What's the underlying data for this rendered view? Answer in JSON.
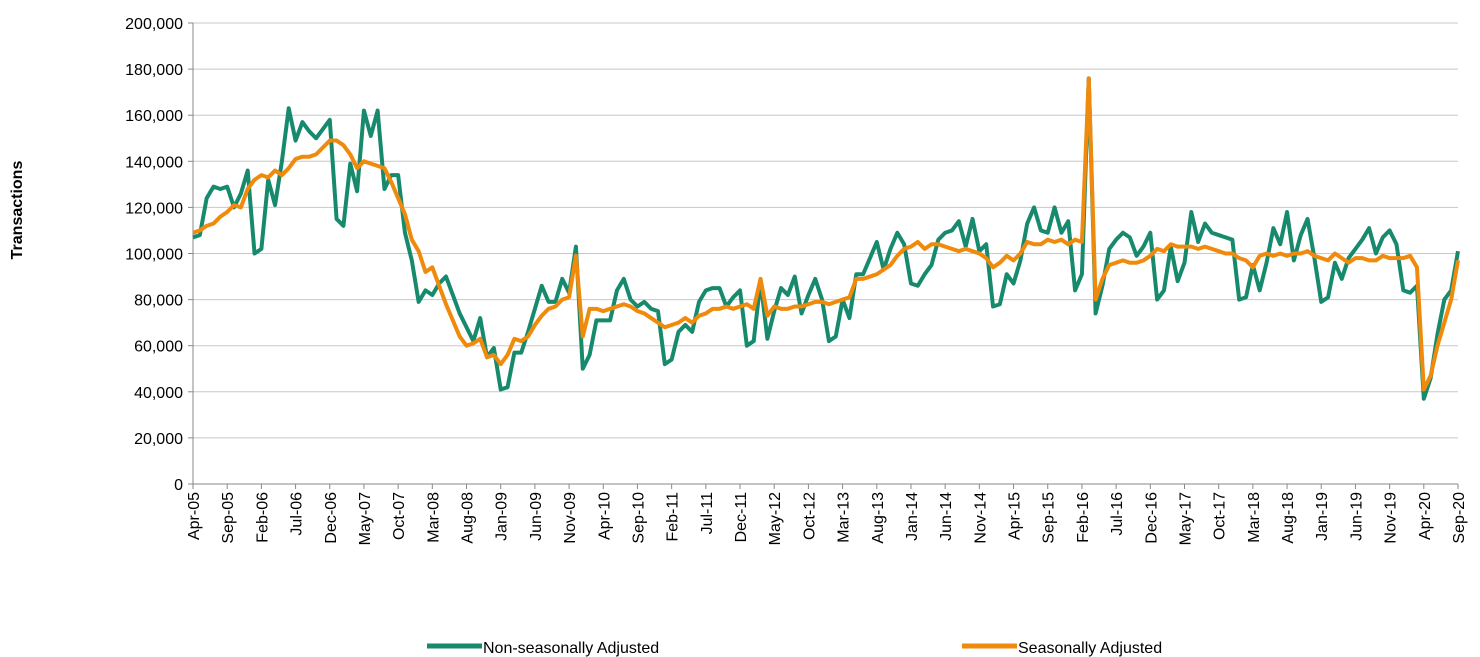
{
  "chart_data": {
    "type": "line",
    "ylabel": "Transactions",
    "categories": [
      "Apr-05",
      null,
      null,
      null,
      null,
      "Sep-05",
      null,
      null,
      null,
      null,
      "Feb-06",
      null,
      null,
      null,
      null,
      "Jul-06",
      null,
      null,
      null,
      null,
      "Dec-06",
      null,
      null,
      null,
      null,
      "May-07",
      null,
      null,
      null,
      null,
      "Oct-07",
      null,
      null,
      null,
      null,
      "Mar-08",
      null,
      null,
      null,
      null,
      "Aug-08",
      null,
      null,
      null,
      null,
      "Jan-09",
      null,
      null,
      null,
      null,
      "Jun-09",
      null,
      null,
      null,
      null,
      "Nov-09",
      null,
      null,
      null,
      null,
      "Apr-10",
      null,
      null,
      null,
      null,
      "Sep-10",
      null,
      null,
      null,
      null,
      "Feb-11",
      null,
      null,
      null,
      null,
      "Jul-11",
      null,
      null,
      null,
      null,
      "Dec-11",
      null,
      null,
      null,
      null,
      "May-12",
      null,
      null,
      null,
      null,
      "Oct-12",
      null,
      null,
      null,
      null,
      "Mar-13",
      null,
      null,
      null,
      null,
      "Aug-13",
      null,
      null,
      null,
      null,
      "Jan-14",
      null,
      null,
      null,
      null,
      "Jun-14",
      null,
      null,
      null,
      null,
      "Nov-14",
      null,
      null,
      null,
      null,
      "Apr-15",
      null,
      null,
      null,
      null,
      "Sep-15",
      null,
      null,
      null,
      null,
      "Feb-16",
      null,
      null,
      null,
      null,
      "Jul-16",
      null,
      null,
      null,
      null,
      "Dec-16",
      null,
      null,
      null,
      null,
      "May-17",
      null,
      null,
      null,
      null,
      "Oct-17",
      null,
      null,
      null,
      null,
      "Mar-18",
      null,
      null,
      null,
      null,
      "Aug-18",
      null,
      null,
      null,
      null,
      "Jan-19",
      null,
      null,
      null,
      null,
      "Jun-19",
      null,
      null,
      null,
      null,
      "Nov-19",
      null,
      null,
      null,
      null,
      "Apr-20",
      null,
      null,
      null,
      null,
      "Sep-20"
    ],
    "series": [
      {
        "name": "Non-seasonally Adjusted",
        "color": "#178a6e",
        "values": [
          107000,
          108000,
          124000,
          129000,
          128000,
          129000,
          120000,
          126000,
          136000,
          100000,
          102000,
          132000,
          121000,
          140000,
          163000,
          149000,
          157000,
          153000,
          150000,
          154000,
          158000,
          115000,
          112000,
          139000,
          127000,
          162000,
          151000,
          162000,
          128000,
          134000,
          134000,
          109000,
          97000,
          79000,
          84000,
          82000,
          87000,
          90000,
          82000,
          74000,
          68000,
          62000,
          72000,
          55000,
          59000,
          41000,
          42000,
          57000,
          57000,
          66000,
          76000,
          86000,
          79000,
          79000,
          89000,
          83000,
          103000,
          50000,
          56000,
          71000,
          71000,
          71000,
          84000,
          89000,
          80000,
          77000,
          79000,
          76000,
          75000,
          52000,
          54000,
          66000,
          69000,
          66000,
          79000,
          84000,
          85000,
          85000,
          77000,
          81000,
          84000,
          60000,
          62000,
          88000,
          63000,
          75000,
          85000,
          82000,
          90000,
          74000,
          82000,
          89000,
          80000,
          62000,
          64000,
          80000,
          72000,
          91000,
          91000,
          98000,
          105000,
          93000,
          102000,
          109000,
          104000,
          87000,
          86000,
          91000,
          95000,
          106000,
          109000,
          110000,
          114000,
          103000,
          115000,
          101000,
          104000,
          77000,
          78000,
          91000,
          87000,
          97000,
          113000,
          120000,
          110000,
          109000,
          120000,
          109000,
          114000,
          84000,
          91000,
          176000,
          74000,
          86000,
          102000,
          106000,
          109000,
          107000,
          99000,
          103000,
          109000,
          80000,
          84000,
          103000,
          88000,
          96000,
          118000,
          105000,
          113000,
          109000,
          108000,
          107000,
          106000,
          80000,
          81000,
          95000,
          84000,
          96000,
          111000,
          104000,
          118000,
          97000,
          108000,
          115000,
          98000,
          79000,
          81000,
          96000,
          89000,
          98000,
          102000,
          106000,
          111000,
          100000,
          107000,
          110000,
          104000,
          84000,
          83000,
          86000,
          37000,
          46000,
          65000,
          80000,
          84000,
          101000
        ]
      },
      {
        "name": "Seasonally Adjusted",
        "color": "#f08a0c",
        "values": [
          109000,
          110000,
          112000,
          113000,
          116000,
          118000,
          121000,
          120000,
          128000,
          132000,
          134000,
          133000,
          136000,
          134000,
          137000,
          141000,
          142000,
          142000,
          143000,
          146000,
          149000,
          149000,
          147000,
          143000,
          137000,
          140000,
          139000,
          138000,
          137000,
          131000,
          124000,
          117000,
          106000,
          101000,
          92000,
          94000,
          86000,
          78000,
          71000,
          64000,
          60000,
          61000,
          63000,
          55000,
          56000,
          52000,
          56000,
          63000,
          62000,
          64000,
          69000,
          73000,
          76000,
          77000,
          80000,
          81000,
          99000,
          64000,
          76000,
          76000,
          75000,
          76000,
          77000,
          78000,
          77000,
          75000,
          74000,
          72000,
          70000,
          68000,
          69000,
          70000,
          72000,
          70000,
          73000,
          74000,
          76000,
          76000,
          77000,
          76000,
          77000,
          78000,
          76000,
          89000,
          73000,
          77000,
          76000,
          76000,
          77000,
          77000,
          78000,
          79000,
          79000,
          78000,
          79000,
          80000,
          81000,
          89000,
          89000,
          90000,
          91000,
          93000,
          95000,
          99000,
          102000,
          103000,
          105000,
          102000,
          104000,
          104000,
          103000,
          102000,
          101000,
          102000,
          101000,
          100000,
          98000,
          94000,
          96000,
          99000,
          97000,
          100000,
          105000,
          104000,
          104000,
          106000,
          105000,
          106000,
          104000,
          106000,
          105000,
          176000,
          80000,
          89000,
          95000,
          96000,
          97000,
          96000,
          96000,
          97000,
          99000,
          102000,
          101000,
          104000,
          103000,
          103000,
          103000,
          102000,
          103000,
          102000,
          101000,
          100000,
          100000,
          98000,
          97000,
          94000,
          99000,
          100000,
          99000,
          100000,
          99000,
          100000,
          100000,
          101000,
          99000,
          98000,
          97000,
          100000,
          98000,
          96000,
          98000,
          98000,
          97000,
          97000,
          99000,
          98000,
          98000,
          98000,
          99000,
          94000,
          41000,
          47000,
          60000,
          70000,
          80000,
          97000
        ]
      }
    ],
    "ylim": [
      0,
      200000
    ],
    "yticks": [
      0,
      {
        "value": 20000,
        "label": "20,000"
      },
      {
        "value": 40000,
        "label": "40,000"
      },
      {
        "value": 60000,
        "label": "60,000"
      },
      {
        "value": 80000,
        "label": "80,000"
      },
      {
        "value": 100000,
        "label": "100,000"
      },
      {
        "value": 120000,
        "label": "120,000"
      },
      {
        "value": 140000,
        "label": "140,000"
      },
      {
        "value": 160000,
        "label": "160,000"
      },
      {
        "value": 180000,
        "label": "180,000"
      },
      {
        "value": 200000,
        "label": "200,000"
      }
    ],
    "grid": true,
    "legend": "bottom"
  }
}
